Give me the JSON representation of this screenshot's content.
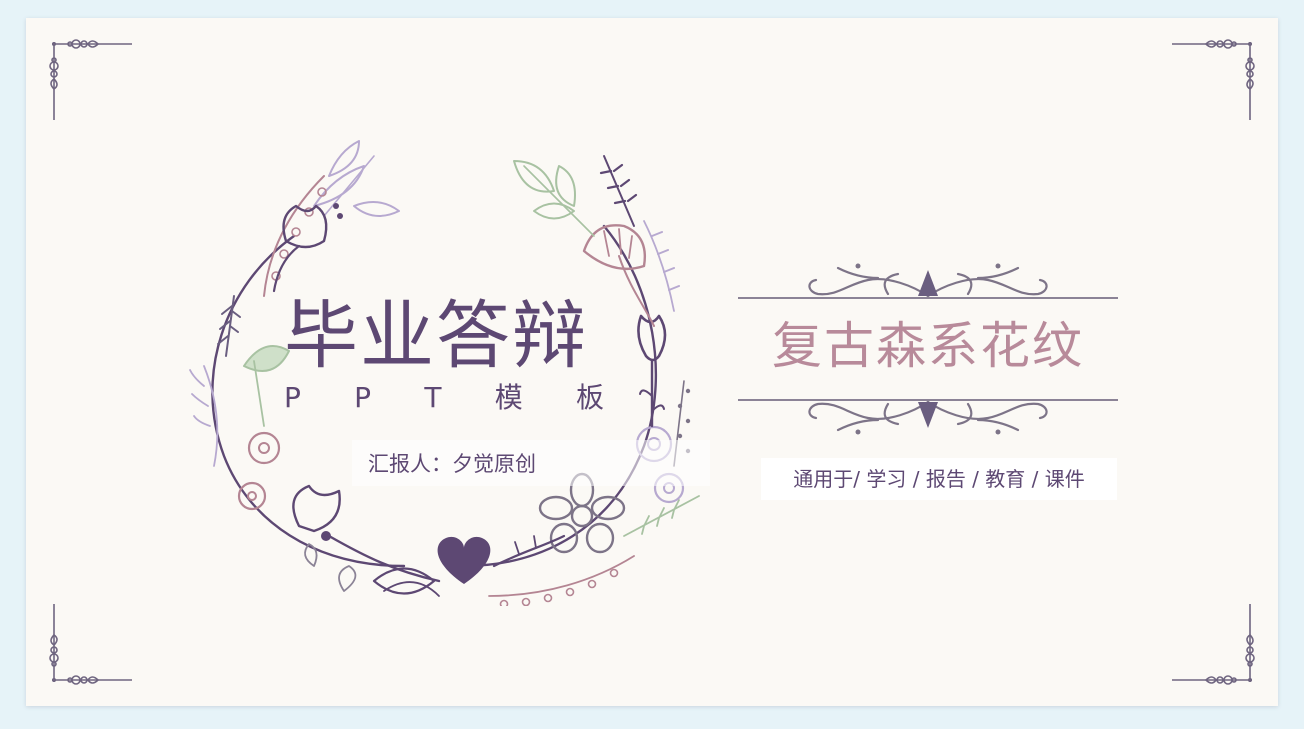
{
  "slide": {
    "main_title": "毕业答辩",
    "subtitle_letters": [
      "P",
      "P",
      "T",
      "模",
      "板"
    ],
    "reporter": "汇报人：夕觉原创",
    "style_title": "复古森系花纹",
    "usage": "通用于/ 学习 / 报告 / 教育 / 课件"
  },
  "colors": {
    "background": "#e6f3f8",
    "slide": "#fbf9f5",
    "primary_purple": "#5d4873",
    "accent_rose": "#b88a9a",
    "lavender": "#b7a9d0",
    "sage": "#b8cfb3",
    "ornament_grey": "#7d7488"
  },
  "icons": [
    "corner-ornament-icon",
    "floral-wreath-icon",
    "heart-icon",
    "scroll-ornament-icon"
  ]
}
